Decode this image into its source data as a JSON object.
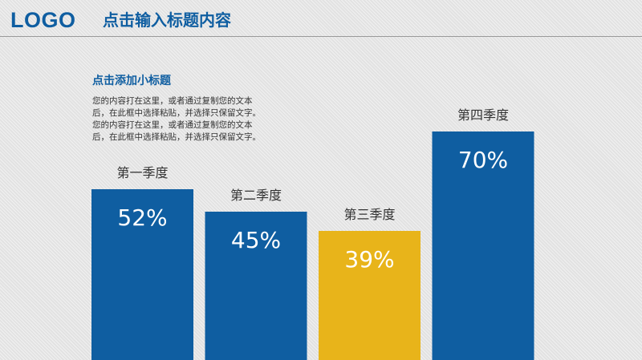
{
  "header": {
    "logo": "LOGO",
    "title": "点击输入标题内容"
  },
  "content": {
    "subtitle": "点击添加小标题",
    "body_lines": [
      "您的内容打在这里，或者通过复制您的文本",
      "后，在此框中选择粘贴，并选择只保留文字。",
      "您的内容打在这里，或者通过复制您的文本",
      "后，在此框中选择粘贴，并选择只保留文字。"
    ]
  },
  "colors": {
    "brand": "#0f5ea1",
    "highlight": "#e8b41a",
    "value_text": "#ffffff",
    "category_text": "#333333"
  },
  "chart_data": {
    "type": "bar",
    "categories": [
      "第一季度",
      "第二季度",
      "第三季度",
      "第四季度"
    ],
    "values": [
      52,
      45,
      39,
      70
    ],
    "value_labels": [
      "52%",
      "45%",
      "39%",
      "70%"
    ],
    "highlight_index": 2,
    "unit": "%",
    "title": "",
    "xlabel": "",
    "ylabel": "",
    "ylim": [
      0,
      100
    ],
    "grid": false,
    "legend": "none"
  }
}
